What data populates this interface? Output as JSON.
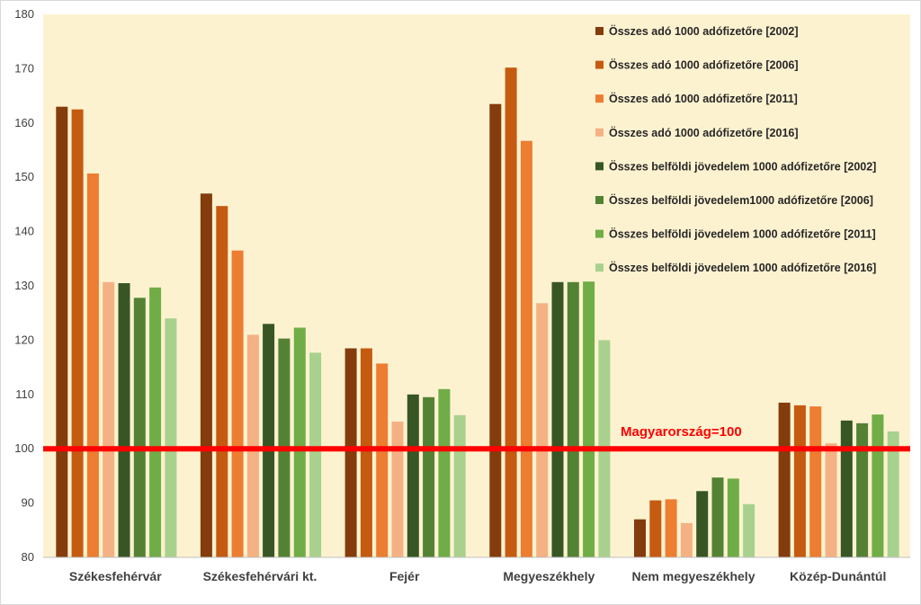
{
  "chart_data": {
    "type": "bar",
    "categories": [
      "Székesfehérvár",
      "Székesfehérvári kt.",
      "Fejér",
      "Megyeszékhely",
      "Nem megyeszékhely",
      "Közép-Dunántúl"
    ],
    "ylim": [
      80,
      180
    ],
    "yticks": [
      80,
      90,
      100,
      110,
      120,
      130,
      140,
      150,
      160,
      170,
      180
    ],
    "grid": false,
    "legend_position": "top-right",
    "reference_line": {
      "value": 100,
      "label": "Magyarország=100",
      "color": "#ff0000"
    },
    "background_color": "#fdf2d0",
    "series": [
      {
        "name": "Összes adó 1000 adófizetőre [2002]",
        "color": "#843c0c",
        "values": [
          163,
          147,
          118.5,
          163.5,
          87,
          108.5
        ]
      },
      {
        "name": "Összes adó 1000 adófizetőre  [2006]",
        "color": "#c55a11",
        "values": [
          162.5,
          144.7,
          118.5,
          170.2,
          90.5,
          108
        ]
      },
      {
        "name": "Összes adó 1000 adófizetőre  [2011]",
        "color": "#ed7d31",
        "values": [
          150.7,
          136.5,
          115.7,
          156.7,
          90.7,
          107.8
        ]
      },
      {
        "name": "Összes adó 1000 adófizetőre  [2016]",
        "color": "#f4b183",
        "values": [
          130.7,
          121,
          105,
          126.8,
          86.3,
          101
        ]
      },
      {
        "name": "Összes belföldi jövedelem 1000 adófizetőre  [2002]",
        "color": "#375623",
        "values": [
          130.5,
          123,
          110,
          130.7,
          92.2,
          105.2
        ]
      },
      {
        "name": "Összes belföldi jövedelem1000 adófizetőre  [2006]",
        "color": "#548235",
        "values": [
          127.8,
          120.3,
          109.5,
          130.7,
          94.7,
          104.7
        ]
      },
      {
        "name": "Összes belföldi jövedelem 1000 adófizetőre  [2011]",
        "color": "#70ad47",
        "values": [
          129.7,
          122.3,
          111,
          130.8,
          94.5,
          106.3
        ]
      },
      {
        "name": "Összes belföldi jövedelem 1000 adófizetőre  [2016]",
        "color": "#a9d18e",
        "values": [
          124,
          117.7,
          106.2,
          120,
          89.8,
          103.2
        ]
      }
    ]
  }
}
